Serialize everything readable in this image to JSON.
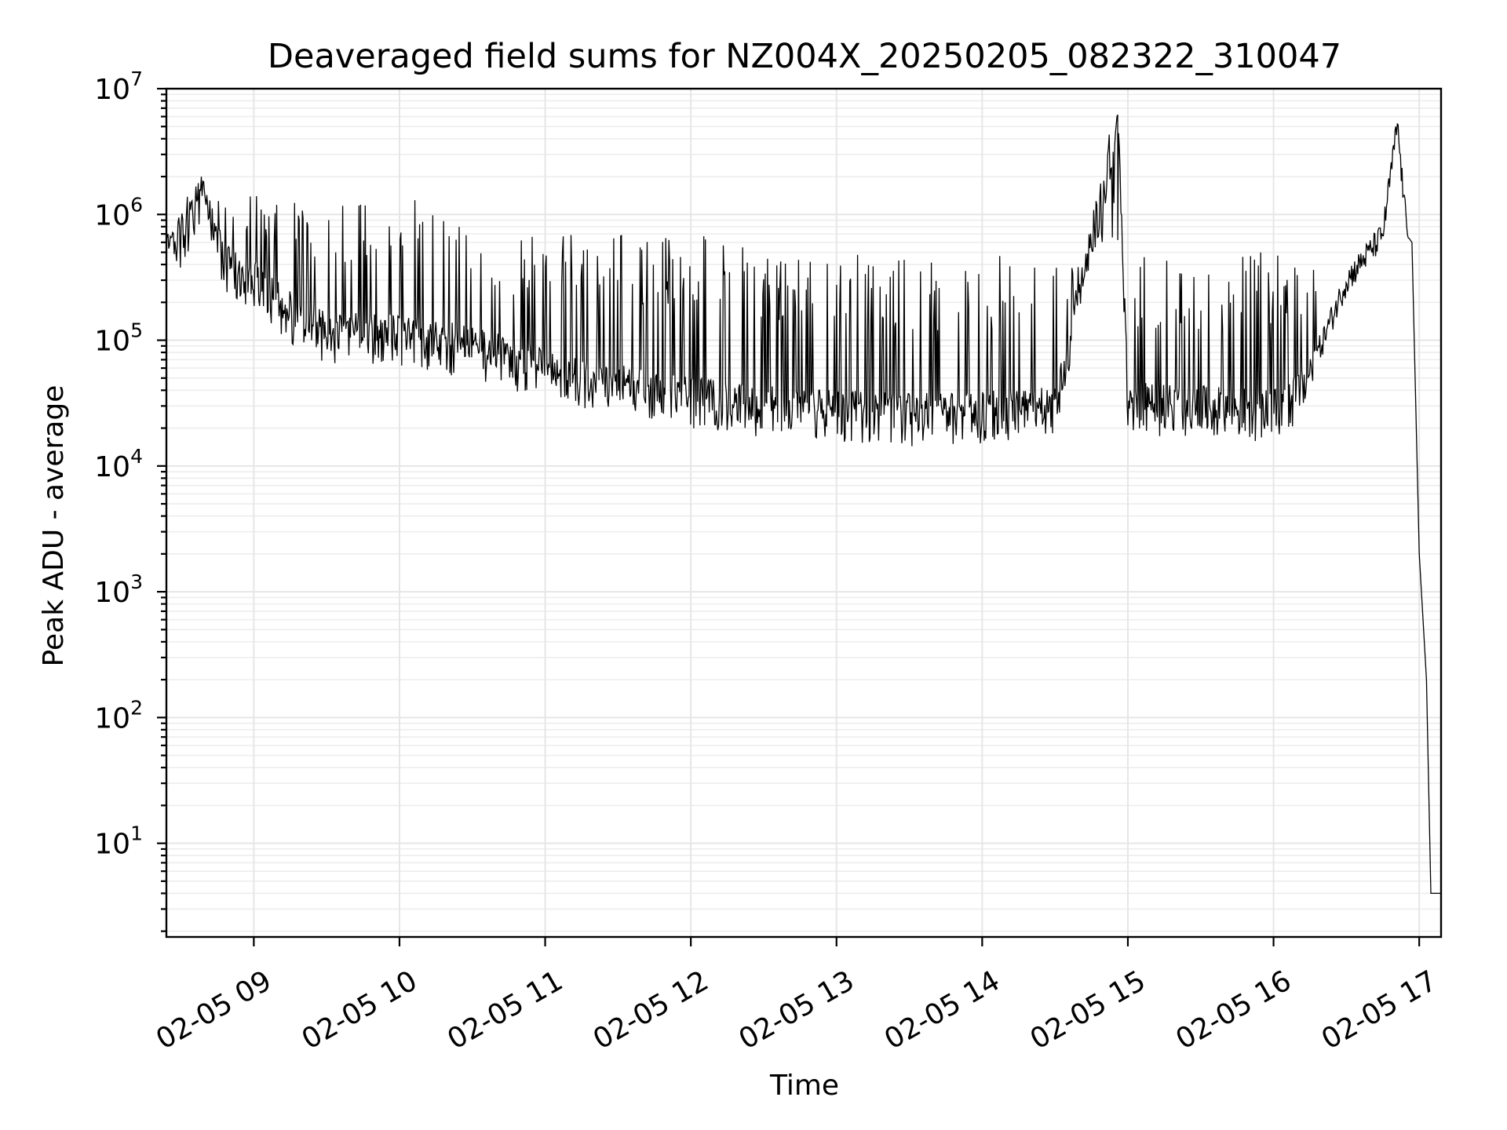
{
  "chart_data": {
    "type": "line",
    "title": "Deaveraged field sums for NZ004X_20250205_082322_310047",
    "xlabel": "Time",
    "ylabel": "Peak ADU - average",
    "x_ticks": [
      "02-05 09",
      "02-05 10",
      "02-05 11",
      "02-05 12",
      "02-05 13",
      "02-05 14",
      "02-05 15",
      "02-05 16",
      "02-05 17"
    ],
    "x_tick_hours": [
      9,
      10,
      11,
      12,
      13,
      14,
      15,
      16,
      17
    ],
    "xlim_hours": [
      8.4,
      17.15
    ],
    "y_scale": "log",
    "y_ticks": [
      {
        "base": "10",
        "exp": "1",
        "value": 10
      },
      {
        "base": "10",
        "exp": "2",
        "value": 100
      },
      {
        "base": "10",
        "exp": "3",
        "value": 1000
      },
      {
        "base": "10",
        "exp": "4",
        "value": 10000
      },
      {
        "base": "10",
        "exp": "5",
        "value": 100000
      },
      {
        "base": "10",
        "exp": "6",
        "value": 1000000
      },
      {
        "base": "10",
        "exp": "7",
        "value": 10000000
      }
    ],
    "ylim": [
      1.8,
      10000000
    ],
    "grid": true,
    "line_color": "#000000",
    "series": [
      {
        "values_approx": [
          {
            "t": 8.4,
            "y": 620000
          },
          {
            "t": 8.55,
            "y": 700000
          },
          {
            "t": 8.63,
            "y": 1600000
          },
          {
            "t": 8.8,
            "y": 400000
          },
          {
            "t": 9.0,
            "y": 300000
          },
          {
            "t": 9.3,
            "y": 150000
          },
          {
            "t": 9.5,
            "y": 120000
          },
          {
            "t": 10.0,
            "y": 110000
          },
          {
            "t": 10.5,
            "y": 90000
          },
          {
            "t": 11.0,
            "y": 60000
          },
          {
            "t": 11.5,
            "y": 45000
          },
          {
            "t": 12.0,
            "y": 35000
          },
          {
            "t": 12.5,
            "y": 30000
          },
          {
            "t": 13.0,
            "y": 28000
          },
          {
            "t": 13.5,
            "y": 26000
          },
          {
            "t": 14.0,
            "y": 27000
          },
          {
            "t": 14.5,
            "y": 30000
          },
          {
            "t": 14.93,
            "y": 6200000
          },
          {
            "t": 15.0,
            "y": 32000
          },
          {
            "t": 15.5,
            "y": 30000
          },
          {
            "t": 16.0,
            "y": 28000
          },
          {
            "t": 16.2,
            "y": 40000
          },
          {
            "t": 16.5,
            "y": 300000
          },
          {
            "t": 16.75,
            "y": 700000
          },
          {
            "t": 16.85,
            "y": 5300000
          },
          {
            "t": 16.9,
            "y": 1100000
          },
          {
            "t": 16.95,
            "y": 600000
          },
          {
            "t": 17.0,
            "y": 2000
          },
          {
            "t": 17.05,
            "y": 200
          },
          {
            "t": 17.08,
            "y": 4
          },
          {
            "t": 17.15,
            "y": 4
          }
        ]
      }
    ]
  }
}
